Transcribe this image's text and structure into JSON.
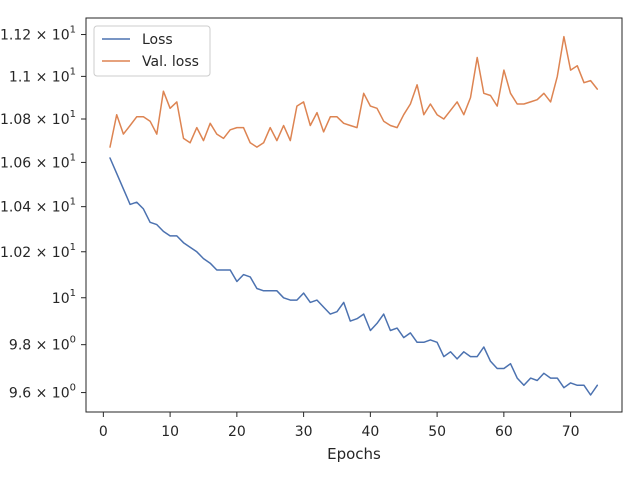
{
  "chart_data": {
    "type": "line",
    "title": "",
    "xlabel": "Epochs",
    "ylabel": "",
    "y_scale": "log",
    "xlim": [
      -2.6,
      77.7
    ],
    "ylim": [
      9.52,
      11.28
    ],
    "x_ticks": [
      {
        "value": 0,
        "label": "0"
      },
      {
        "value": 10,
        "label": "10"
      },
      {
        "value": 20,
        "label": "20"
      },
      {
        "value": 30,
        "label": "30"
      },
      {
        "value": 40,
        "label": "40"
      },
      {
        "value": 50,
        "label": "50"
      },
      {
        "value": 60,
        "label": "60"
      },
      {
        "value": 70,
        "label": "70"
      }
    ],
    "y_ticks": [
      {
        "value": 9.6,
        "mantissa": "9.6",
        "exponent": "0"
      },
      {
        "value": 9.8,
        "mantissa": "9.8",
        "exponent": "0"
      },
      {
        "value": 10.0,
        "mantissa": "10",
        "exponent": "1"
      },
      {
        "value": 10.2,
        "mantissa": "1.02",
        "exponent": "1"
      },
      {
        "value": 10.4,
        "mantissa": "1.04",
        "exponent": "1"
      },
      {
        "value": 10.6,
        "mantissa": "1.06",
        "exponent": "1"
      },
      {
        "value": 10.8,
        "mantissa": "1.08",
        "exponent": "1"
      },
      {
        "value": 11.0,
        "mantissa": "1.1",
        "exponent": "1"
      },
      {
        "value": 11.2,
        "mantissa": "1.12",
        "exponent": "1"
      }
    ],
    "grid": false,
    "legend_position": "top-left",
    "x": [
      1,
      2,
      3,
      4,
      5,
      6,
      7,
      8,
      9,
      10,
      11,
      12,
      13,
      14,
      15,
      16,
      17,
      18,
      19,
      20,
      21,
      22,
      23,
      24,
      25,
      26,
      27,
      28,
      29,
      30,
      31,
      32,
      33,
      34,
      35,
      36,
      37,
      38,
      39,
      40,
      41,
      42,
      43,
      44,
      45,
      46,
      47,
      48,
      49,
      50,
      51,
      52,
      53,
      54,
      55,
      56,
      57,
      58,
      59,
      60,
      61,
      62,
      63,
      64,
      65,
      66,
      67,
      68,
      69,
      70,
      71,
      72,
      73,
      74
    ],
    "series": [
      {
        "name": "Loss",
        "color": "#4c72b0",
        "values": [
          10.62,
          10.55,
          10.48,
          10.41,
          10.42,
          10.39,
          10.33,
          10.32,
          10.29,
          10.27,
          10.27,
          10.24,
          10.22,
          10.2,
          10.17,
          10.15,
          10.12,
          10.12,
          10.12,
          10.07,
          10.1,
          10.09,
          10.04,
          10.03,
          10.03,
          10.03,
          10.0,
          9.99,
          9.99,
          10.02,
          9.98,
          9.99,
          9.96,
          9.93,
          9.94,
          9.98,
          9.9,
          9.91,
          9.93,
          9.86,
          9.89,
          9.93,
          9.86,
          9.87,
          9.83,
          9.85,
          9.81,
          9.81,
          9.82,
          9.81,
          9.75,
          9.77,
          9.74,
          9.77,
          9.75,
          9.75,
          9.79,
          9.73,
          9.7,
          9.7,
          9.72,
          9.66,
          9.63,
          9.66,
          9.65,
          9.68,
          9.66,
          9.66,
          9.62,
          9.64,
          9.63,
          9.63,
          9.59,
          9.63
        ]
      },
      {
        "name": "Val. loss",
        "color": "#dd8452",
        "values": [
          10.67,
          10.82,
          10.73,
          10.77,
          10.81,
          10.81,
          10.79,
          10.73,
          10.93,
          10.85,
          10.88,
          10.71,
          10.69,
          10.76,
          10.7,
          10.78,
          10.73,
          10.71,
          10.75,
          10.76,
          10.76,
          10.69,
          10.67,
          10.69,
          10.76,
          10.7,
          10.77,
          10.7,
          10.86,
          10.88,
          10.77,
          10.83,
          10.74,
          10.81,
          10.81,
          10.78,
          10.77,
          10.76,
          10.92,
          10.86,
          10.85,
          10.79,
          10.77,
          10.76,
          10.82,
          10.87,
          10.96,
          10.82,
          10.87,
          10.82,
          10.8,
          10.84,
          10.88,
          10.82,
          10.9,
          11.09,
          10.92,
          10.91,
          10.86,
          11.03,
          10.92,
          10.87,
          10.87,
          10.88,
          10.89,
          10.92,
          10.88,
          11.0,
          11.19,
          11.03,
          11.05,
          10.97,
          10.98,
          10.94
        ]
      }
    ]
  }
}
